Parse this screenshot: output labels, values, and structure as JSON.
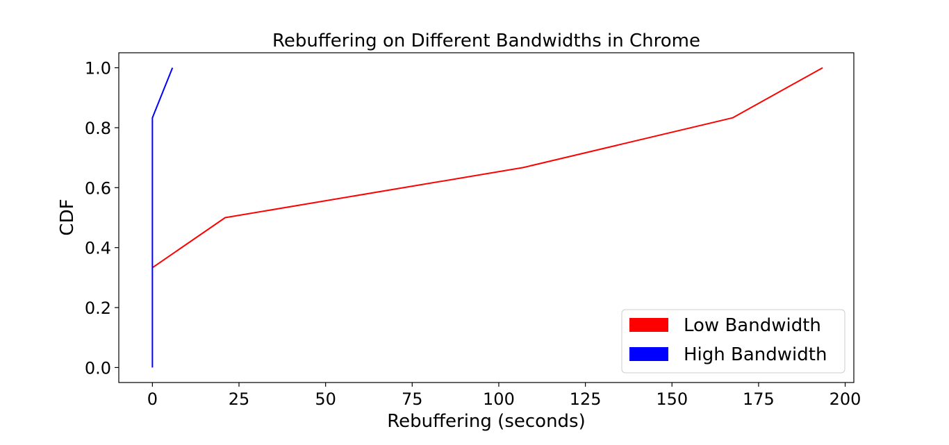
{
  "chart_data": {
    "type": "line",
    "title": "Rebuffering on Different Bandwidths in Chrome",
    "xlabel": "Rebuffering (seconds)",
    "ylabel": "CDF",
    "xlim": [
      -9.7,
      202.5
    ],
    "ylim": [
      -0.05,
      1.05
    ],
    "x_ticks": [
      0,
      25,
      50,
      75,
      100,
      125,
      150,
      175,
      200
    ],
    "y_ticks": [
      0.0,
      0.2,
      0.4,
      0.6,
      0.8,
      1.0
    ],
    "x_tick_labels": [
      "0",
      "25",
      "50",
      "75",
      "100",
      "125",
      "150",
      "175",
      "200"
    ],
    "y_tick_labels": [
      "0.0",
      "0.2",
      "0.4",
      "0.6",
      "0.8",
      "1.0"
    ],
    "grid": false,
    "legend_position": "lower-right",
    "series": [
      {
        "name": "Low Bandwidth",
        "color": "#ff0000",
        "x": [
          0,
          21,
          107,
          167.5,
          193.5
        ],
        "y": [
          0.333,
          0.5,
          0.667,
          0.833,
          1.0
        ]
      },
      {
        "name": "High Bandwidth",
        "color": "#0000ff",
        "x": [
          0,
          0,
          0,
          5.8
        ],
        "y": [
          0.0,
          0.5,
          0.833,
          1.0
        ]
      }
    ]
  }
}
